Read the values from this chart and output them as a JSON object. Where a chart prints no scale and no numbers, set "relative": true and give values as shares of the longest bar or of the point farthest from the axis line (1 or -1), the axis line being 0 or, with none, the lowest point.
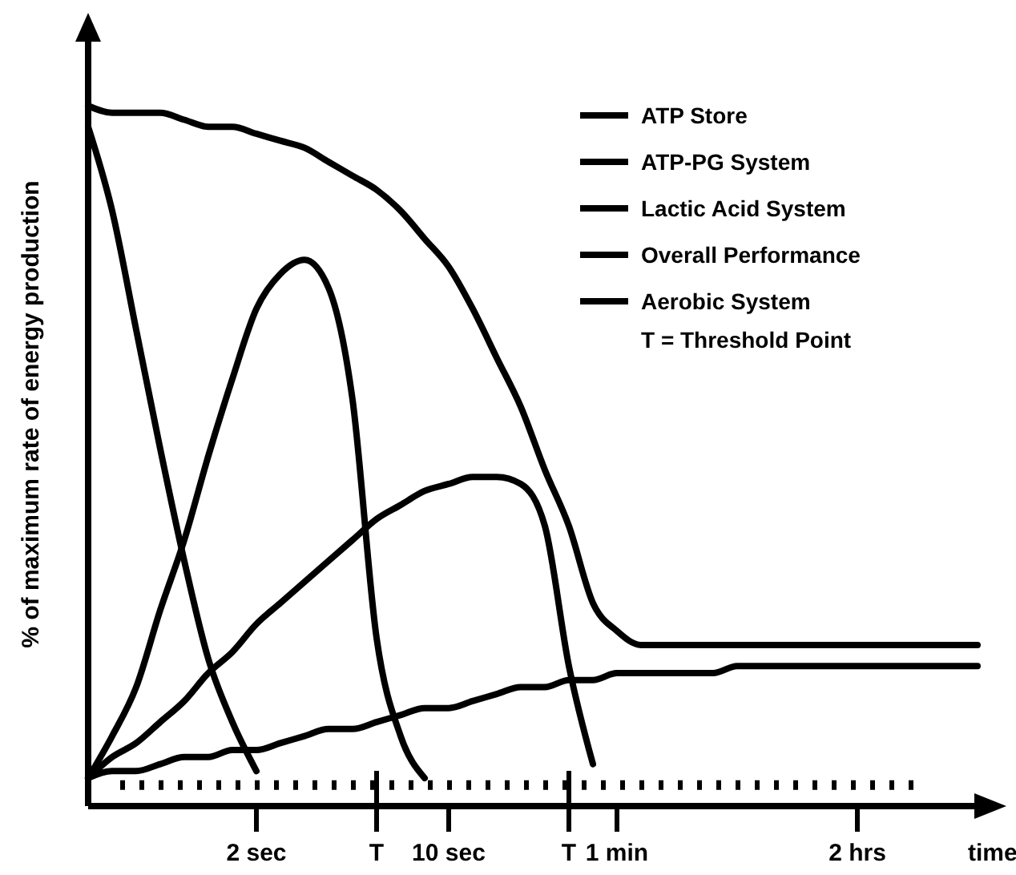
{
  "chart_data": {
    "type": "line",
    "relative": true,
    "ylabel": "% of maximum rate of energy production",
    "xlabel": "time",
    "categories": [
      null,
      null,
      null,
      null,
      null,
      null,
      null,
      "2 sec",
      null,
      null,
      null,
      null,
      "T",
      null,
      null,
      "10 sec",
      null,
      null,
      null,
      null,
      "T",
      null,
      "1 min",
      null,
      null,
      null,
      null,
      null,
      null,
      null,
      null,
      null,
      "2 hrs",
      null,
      null,
      null,
      null,
      null
    ],
    "legend": "top right",
    "marker": "none",
    "line_style": "solid",
    "grid": false,
    "ref_lines": [
      {
        "axis": "y",
        "value": 0.03,
        "line_style": "dotted",
        "color": "#000000"
      }
    ],
    "annotations": [
      "T = Threshold Point"
    ],
    "series": [
      {
        "name": "ATP Store",
        "color": "#000000",
        "values": [
          0.97,
          0.85,
          0.68,
          0.51,
          0.35,
          0.21,
          0.12,
          0.05,
          null,
          null,
          null,
          null,
          null,
          null,
          null,
          null,
          null,
          null,
          null,
          null,
          null,
          null,
          null,
          null,
          null,
          null,
          null,
          null,
          null,
          null,
          null,
          null,
          null,
          null,
          null,
          null,
          null,
          null
        ]
      },
      {
        "name": "ATP-PG System",
        "color": "#000000",
        "values": [
          0.04,
          0.1,
          0.17,
          0.28,
          0.38,
          0.5,
          0.61,
          0.71,
          0.76,
          0.78,
          0.74,
          0.58,
          0.24,
          0.1,
          0.04,
          null,
          null,
          null,
          null,
          null,
          null,
          null,
          null,
          null,
          null,
          null,
          null,
          null,
          null,
          null,
          null,
          null,
          null,
          null,
          null,
          null,
          null,
          null
        ]
      },
      {
        "name": "Lactic Acid System",
        "color": "#000000",
        "values": [
          0.04,
          0.07,
          0.09,
          0.12,
          0.15,
          0.19,
          0.22,
          0.26,
          0.29,
          0.32,
          0.35,
          0.38,
          0.41,
          0.43,
          0.45,
          0.46,
          0.47,
          0.47,
          0.46,
          0.4,
          0.2,
          0.06,
          null,
          null,
          null,
          null,
          null,
          null,
          null,
          null,
          null,
          null,
          null,
          null,
          null,
          null,
          null,
          null
        ]
      },
      {
        "name": "Overall Performance",
        "color": "#000000",
        "values": [
          1,
          0.99,
          0.99,
          0.99,
          0.98,
          0.97,
          0.97,
          0.96,
          0.95,
          0.94,
          0.92,
          0.9,
          0.88,
          0.85,
          0.81,
          0.77,
          0.71,
          0.64,
          0.57,
          0.48,
          0.4,
          0.29,
          0.25,
          0.23,
          0.23,
          0.23,
          0.23,
          0.23,
          0.23,
          0.23,
          0.23,
          0.23,
          0.23,
          0.23,
          0.23,
          0.23,
          0.23,
          0.23
        ]
      },
      {
        "name": "Aerobic System",
        "color": "#000000",
        "values": [
          0.04,
          0.05,
          0.05,
          0.06,
          0.07,
          0.07,
          0.08,
          0.08,
          0.09,
          0.1,
          0.11,
          0.11,
          0.12,
          0.13,
          0.14,
          0.14,
          0.15,
          0.16,
          0.17,
          0.17,
          0.18,
          0.18,
          0.19,
          0.19,
          0.19,
          0.19,
          0.19,
          0.2,
          0.2,
          0.2,
          0.2,
          0.2,
          0.2,
          0.2,
          0.2,
          0.2,
          0.2,
          0.2
        ]
      }
    ]
  }
}
